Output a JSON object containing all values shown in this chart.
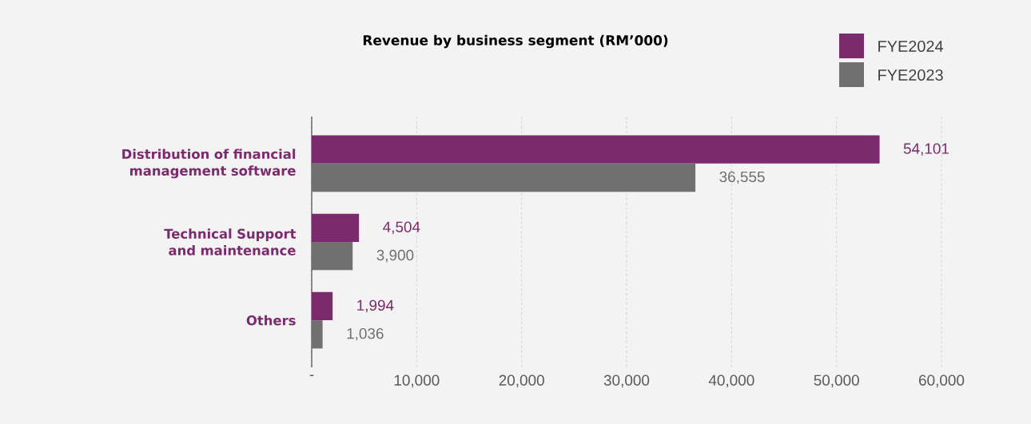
{
  "chart_data": {
    "type": "bar",
    "orientation": "horizontal",
    "title": "Revenue by business segment (RM’000)",
    "categories": [
      "Distribution of financial management software",
      "Technical Support and maintenance",
      "Others"
    ],
    "series": [
      {
        "name": "FYE2024",
        "color": "#7b2a6d",
        "values": [
          54101,
          4504,
          1994
        ],
        "value_labels": [
          "54,101",
          "4,504",
          "1,994"
        ]
      },
      {
        "name": "FYE2023",
        "color": "#707070",
        "values": [
          36555,
          3900,
          1036
        ],
        "value_labels": [
          "36,555",
          "3,900",
          "1,036"
        ]
      }
    ],
    "xlim": [
      0,
      60000
    ],
    "xticks": [
      {
        "value": 0,
        "label": "-"
      },
      {
        "value": 10000,
        "label": "10,000"
      },
      {
        "value": 20000,
        "label": "20,000"
      },
      {
        "value": 30000,
        "label": "30,000"
      },
      {
        "value": 40000,
        "label": "40,000"
      },
      {
        "value": 50000,
        "label": "50,000"
      },
      {
        "value": 60000,
        "label": "60,000"
      }
    ],
    "grid": "x",
    "legend": "top right"
  }
}
